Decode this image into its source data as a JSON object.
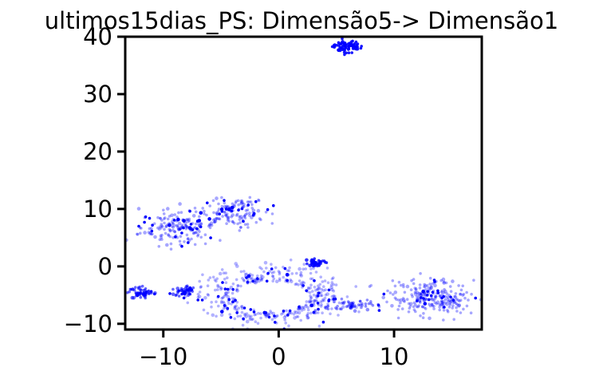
{
  "chart_data": {
    "type": "scatter",
    "title": "ultimos15dias_PS: Dimensão5-> Dimensão1",
    "xlabel": "",
    "ylabel": "",
    "xlim": [
      -13.3,
      17.6
    ],
    "ylim": [
      -11,
      40
    ],
    "xticks": [
      -10,
      0,
      10
    ],
    "xtick_labels": [
      "−10",
      "0",
      "10"
    ],
    "yticks": [
      -10,
      0,
      10,
      20,
      30,
      40
    ],
    "ytick_labels": [
      "−10",
      "0",
      "10",
      "20",
      "30",
      "40"
    ],
    "grid": false,
    "legend": "none",
    "color": "#0000ff",
    "series": [
      {
        "clusters": [
          {
            "cx": 5.9,
            "cy": 38.3,
            "rx": 1.4,
            "ry": 1.2,
            "n": 70,
            "alpha": 0.9
          },
          {
            "cx": -8.7,
            "cy": 6.8,
            "rx": 3.6,
            "ry": 3.2,
            "n": 180,
            "alpha": 0.35
          },
          {
            "cx": -4.2,
            "cy": 9.6,
            "rx": 3.4,
            "ry": 2.8,
            "n": 140,
            "alpha": 0.35
          },
          {
            "cx": -11.8,
            "cy": -4.6,
            "rx": 1.4,
            "ry": 1.2,
            "n": 60,
            "alpha": 0.6
          },
          {
            "cx": -8.2,
            "cy": -4.2,
            "rx": 1.1,
            "ry": 1.0,
            "n": 45,
            "alpha": 0.6
          },
          {
            "cx": 3.2,
            "cy": 0.6,
            "rx": 0.9,
            "ry": 0.7,
            "n": 40,
            "alpha": 0.8
          },
          {
            "cx": -0.6,
            "cy": -5.2,
            "rx": 5.8,
            "ry": 4.6,
            "n": 420,
            "alpha": 0.3,
            "ring": true
          },
          {
            "cx": 6.3,
            "cy": -6.8,
            "rx": 2.0,
            "ry": 1.1,
            "n": 50,
            "alpha": 0.45
          },
          {
            "cx": 13.3,
            "cy": -5.4,
            "rx": 4.0,
            "ry": 3.3,
            "n": 240,
            "alpha": 0.35
          }
        ]
      }
    ]
  }
}
